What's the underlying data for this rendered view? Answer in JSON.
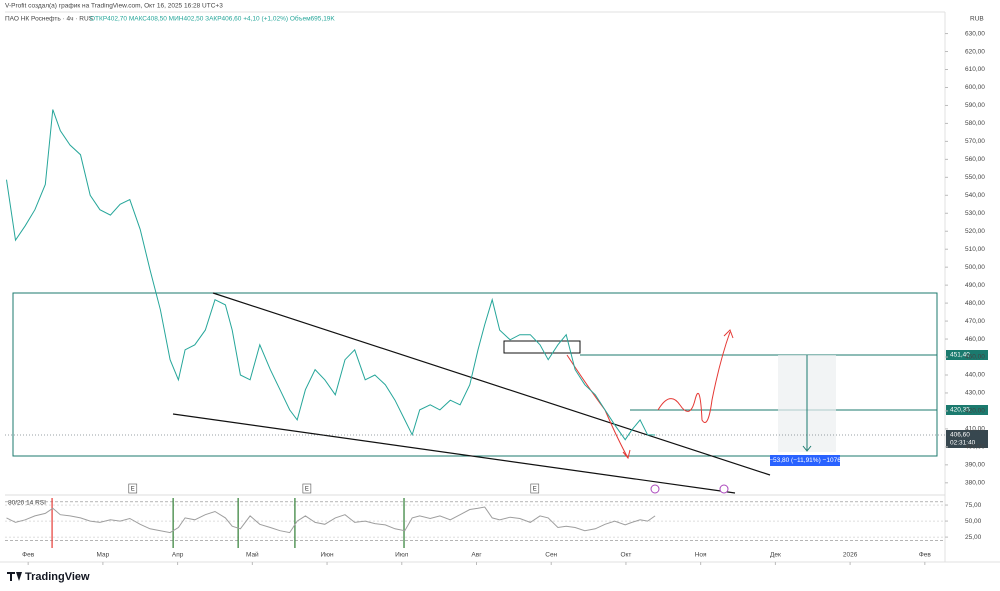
{
  "header": {
    "watermark": "V-Profit создал(а) график на TradingView.com, Окт 16, 2025 16:28 UTC+3",
    "symbol": "ПАО НК Роснефть · 4ч · RUS",
    "ohlc": "ОТКР402,70 МАКС408,50 МИН402,50 ЗАКР406,60 +4,10 (+1,02%) Объем695,19K",
    "currency": "RUB"
  },
  "chart_data": [
    {
      "type": "line",
      "xlim": [
        -0.31,
        12.27
      ],
      "ylim": [
        376,
        642
      ],
      "yticks": [
        {
          "value": 380,
          "label": "380,00"
        },
        {
          "value": 390,
          "label": "390,00"
        },
        {
          "value": 400,
          "label": "400,00"
        },
        {
          "value": 410,
          "label": "410,00"
        },
        {
          "value": 420,
          "label": "420,00"
        },
        {
          "value": 430,
          "label": "430,00"
        },
        {
          "value": 440,
          "label": "440,00"
        },
        {
          "value": 450,
          "label": "450,00"
        },
        {
          "value": 460,
          "label": "460,00"
        },
        {
          "value": 470,
          "label": "470,00"
        },
        {
          "value": 480,
          "label": "480,00"
        },
        {
          "value": 490,
          "label": "490,00"
        },
        {
          "value": 500,
          "label": "500,00"
        },
        {
          "value": 510,
          "label": "510,00"
        },
        {
          "value": 520,
          "label": "520,00"
        },
        {
          "value": 530,
          "label": "530,00"
        },
        {
          "value": 540,
          "label": "540,00"
        },
        {
          "value": 550,
          "label": "550,00"
        },
        {
          "value": 560,
          "label": "560,00"
        },
        {
          "value": 570,
          "label": "570,00"
        },
        {
          "value": 580,
          "label": "580,00"
        },
        {
          "value": 590,
          "label": "590,00"
        },
        {
          "value": 600,
          "label": "600,00"
        },
        {
          "value": 610,
          "label": "610,00"
        },
        {
          "value": 620,
          "label": "620,00"
        },
        {
          "value": 630,
          "label": "630,00"
        }
      ],
      "x": [
        -0.29,
        -0.17,
        -0.04,
        0.09,
        0.23,
        0.33,
        0.43,
        0.56,
        0.7,
        0.83,
        0.96,
        1.1,
        1.23,
        1.36,
        1.5,
        1.63,
        1.77,
        1.9,
        2.01,
        2.1,
        2.23,
        2.37,
        2.5,
        2.64,
        2.73,
        2.84,
        2.97,
        3.1,
        3.24,
        3.37,
        3.5,
        3.6,
        3.71,
        3.84,
        3.97,
        4.11,
        4.24,
        4.37,
        4.51,
        4.64,
        4.78,
        4.91,
        5.04,
        5.14,
        5.24,
        5.38,
        5.51,
        5.65,
        5.78,
        5.91,
        6.02,
        6.11,
        6.21,
        6.31,
        6.45,
        6.58,
        6.72,
        6.85,
        6.96,
        7.09,
        7.2,
        7.32,
        7.45,
        7.59,
        7.72,
        7.85,
        7.99,
        8.08,
        8.19,
        8.29,
        8.39
      ],
      "series": [
        {
          "name": "Роснефть",
          "color": "#26a69a",
          "values": [
            548.7,
            515,
            523,
            532,
            546,
            587.7,
            576,
            568,
            562.6,
            540,
            532,
            529,
            535,
            537.6,
            521,
            498.6,
            476.3,
            448.5,
            437.3,
            454,
            456.8,
            465,
            481.9,
            479,
            465,
            440,
            437.3,
            456.8,
            443,
            431.8,
            420.6,
            415,
            431.8,
            443,
            437.3,
            429,
            448.5,
            454,
            437.3,
            440,
            434.6,
            426,
            415,
            406.7,
            420.6,
            423.4,
            420.6,
            426,
            423.4,
            434.6,
            454,
            468,
            481.9,
            465,
            459.6,
            462.4,
            462.4,
            456.8,
            448.5,
            456.8,
            462.4,
            443,
            434.6,
            429,
            420.6,
            412.3,
            404,
            409.5,
            415,
            406.7,
            406.6
          ]
        }
      ],
      "events": [
        {
          "x": 1.4,
          "label": "E"
        },
        {
          "x": 3.73,
          "label": "E"
        },
        {
          "x": 6.78,
          "label": "E"
        }
      ],
      "annotations": [
        "451,40",
        "420,35",
        "406,60",
        "02:31:40",
        "−53,80 (−11,91%) −1076"
      ]
    },
    {
      "type": "line",
      "title": "80/20 14 RSI",
      "xlim": [
        -0.31,
        12.27
      ],
      "ylim": [
        8,
        86
      ],
      "bands": [
        20,
        80
      ],
      "yticks": [
        {
          "value": 25,
          "label": "25,00"
        },
        {
          "value": 50,
          "label": "50,00"
        },
        {
          "value": 75,
          "label": "75,00"
        }
      ],
      "xticks": [
        {
          "value": 0,
          "label": "Фев"
        },
        {
          "value": 1,
          "label": "Мар"
        },
        {
          "value": 2,
          "label": "Апр"
        },
        {
          "value": 3,
          "label": "Май"
        },
        {
          "value": 4,
          "label": "Июн"
        },
        {
          "value": 5,
          "label": "Июл"
        },
        {
          "value": 6,
          "label": "Авг"
        },
        {
          "value": 7,
          "label": "Сен"
        },
        {
          "value": 8,
          "label": "Окт"
        },
        {
          "value": 9,
          "label": "Ноя"
        },
        {
          "value": 10,
          "label": "Дек"
        },
        {
          "value": 11,
          "label": "2026"
        },
        {
          "value": 12,
          "label": "Фев"
        }
      ],
      "signals": [
        {
          "x": 0.32,
          "color": "#e53935"
        },
        {
          "x": 1.94,
          "color": "#2e7d32"
        },
        {
          "x": 2.81,
          "color": "#2e7d32"
        },
        {
          "x": 3.57,
          "color": "#2e7d32"
        },
        {
          "x": 5.03,
          "color": "#2e7d32"
        }
      ],
      "x": [
        -0.29,
        -0.17,
        -0.04,
        0.09,
        0.23,
        0.33,
        0.43,
        0.56,
        0.7,
        0.83,
        0.96,
        1.1,
        1.23,
        1.36,
        1.5,
        1.63,
        1.77,
        1.9,
        2.01,
        2.1,
        2.23,
        2.37,
        2.5,
        2.64,
        2.73,
        2.84,
        2.97,
        3.1,
        3.24,
        3.37,
        3.5,
        3.6,
        3.71,
        3.84,
        3.97,
        4.11,
        4.24,
        4.37,
        4.51,
        4.64,
        4.78,
        4.91,
        5.04,
        5.14,
        5.24,
        5.38,
        5.51,
        5.65,
        5.78,
        5.91,
        6.02,
        6.11,
        6.21,
        6.31,
        6.45,
        6.58,
        6.72,
        6.85,
        6.96,
        7.09,
        7.2,
        7.32,
        7.45,
        7.59,
        7.72,
        7.85,
        7.99,
        8.08,
        8.19,
        8.29,
        8.39
      ],
      "series": [
        {
          "name": "RSI",
          "color": "#9e9e9e",
          "values": [
            55,
            48,
            52,
            58,
            62,
            70,
            60,
            58,
            55,
            50,
            48,
            52,
            50,
            54,
            45,
            38,
            35,
            32,
            40,
            55,
            52,
            60,
            65,
            55,
            42,
            38,
            58,
            45,
            40,
            35,
            32,
            50,
            58,
            48,
            45,
            55,
            60,
            48,
            50,
            46,
            44,
            38,
            35,
            55,
            58,
            54,
            58,
            52,
            60,
            68,
            70,
            72,
            55,
            52,
            56,
            54,
            48,
            58,
            55,
            40,
            42,
            40,
            35,
            38,
            45,
            50,
            44,
            48,
            52,
            50,
            58
          ]
        }
      ]
    }
  ],
  "footer": {
    "brand": "TradingView"
  }
}
